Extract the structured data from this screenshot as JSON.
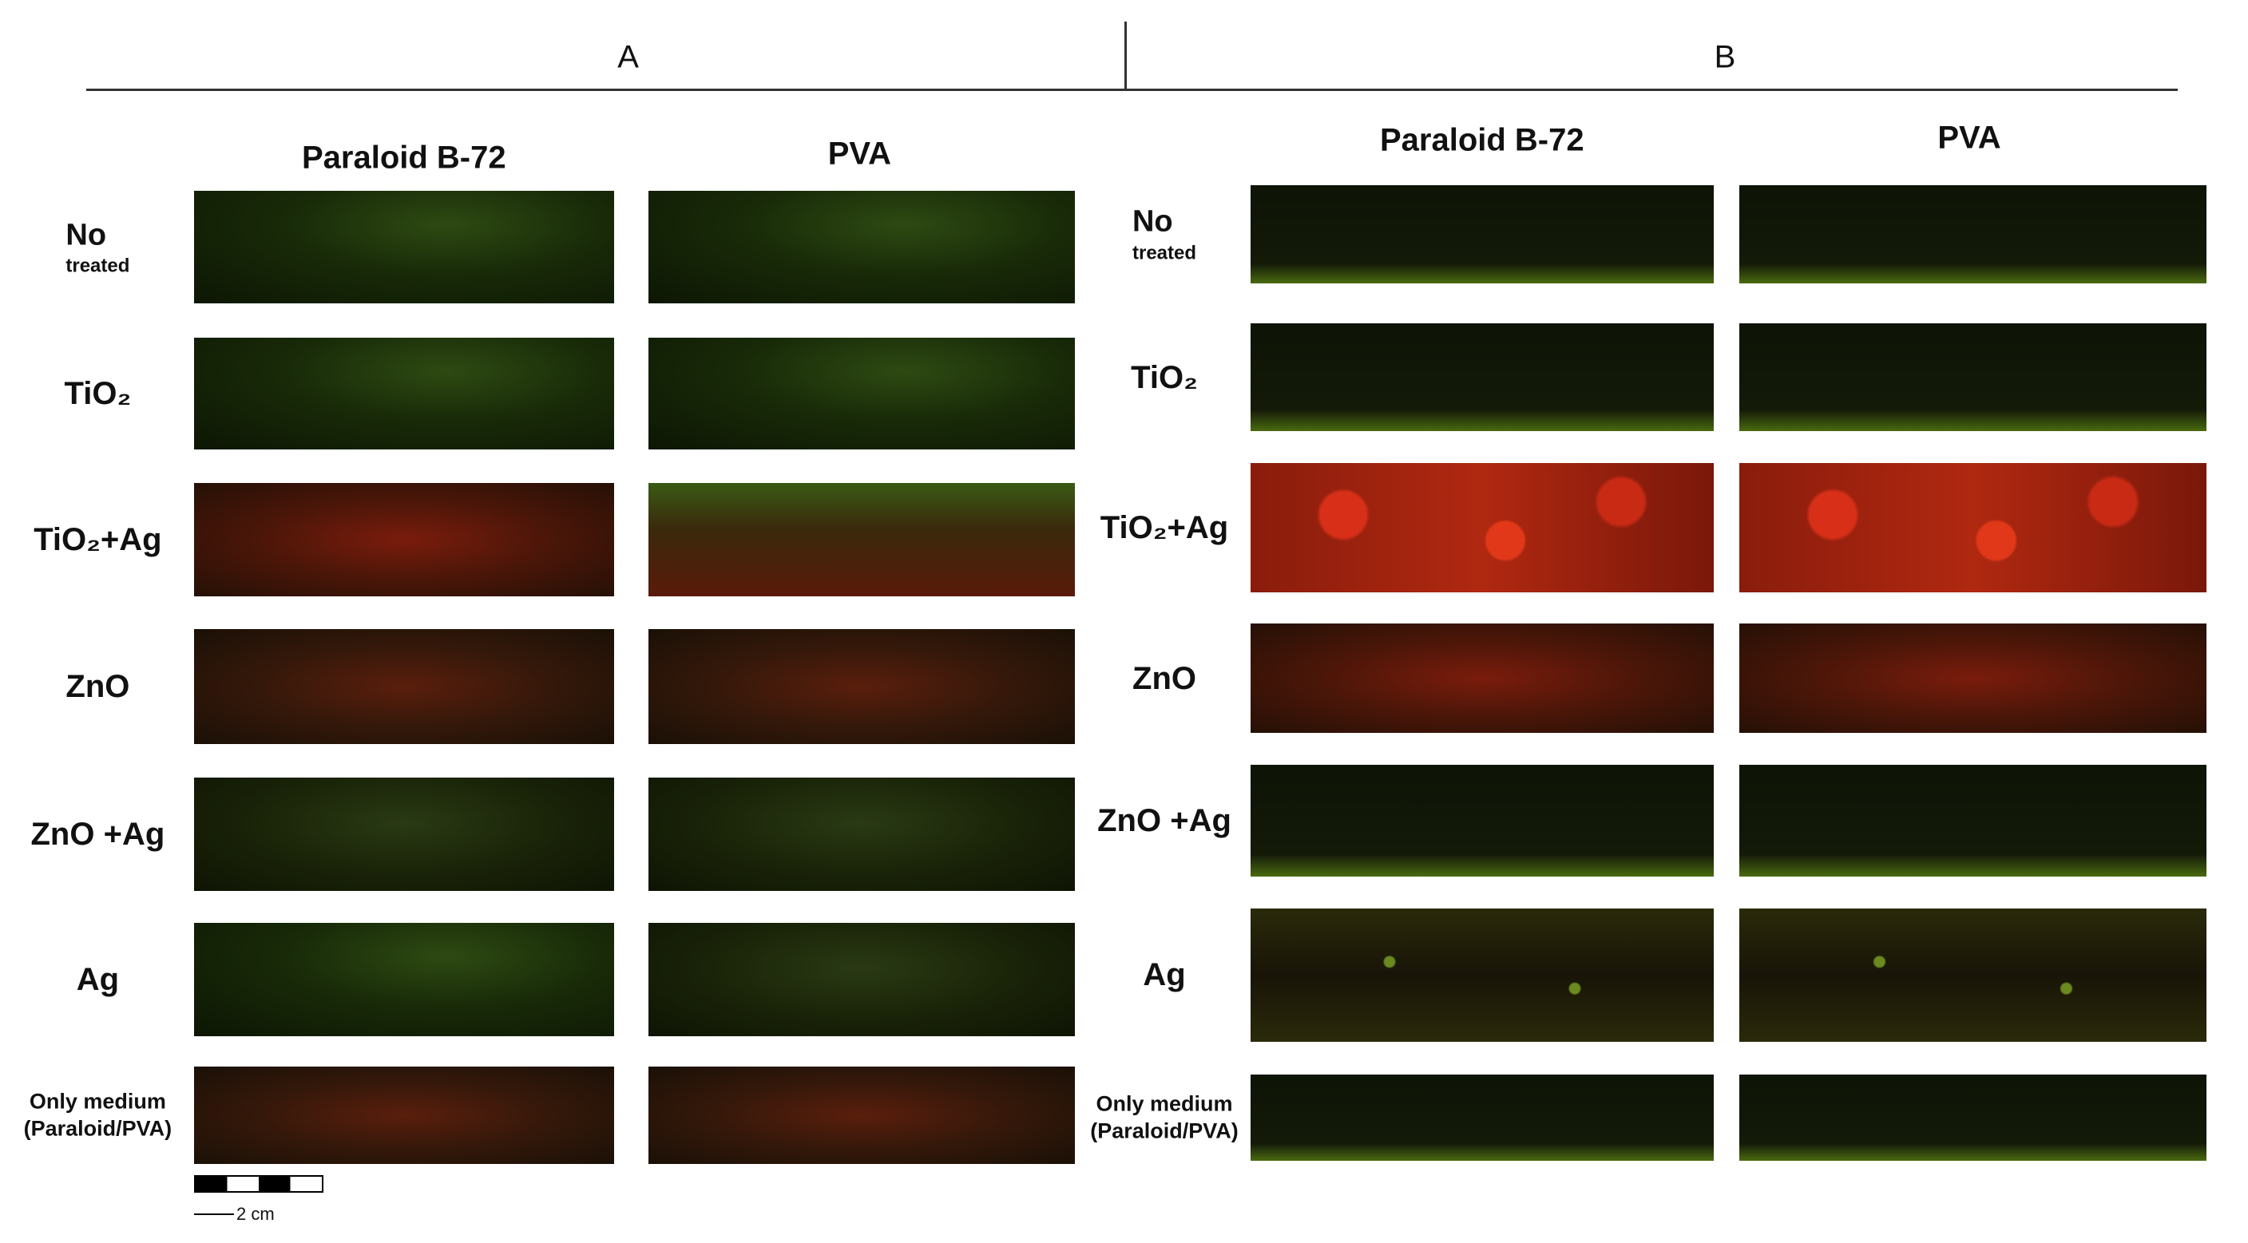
{
  "panels": [
    {
      "label": "A",
      "columns": [
        "Paraloid B-72",
        "PVA"
      ],
      "rows": [
        [
          "No",
          "treated"
        ],
        [
          "TiO₂"
        ],
        [
          "TiO₂+Ag"
        ],
        [
          "ZnO"
        ],
        [
          "ZnO +Ag"
        ],
        [
          "Ag"
        ],
        [
          "Only medium",
          "(Paraloid/PVA)"
        ]
      ]
    },
    {
      "label": "B",
      "columns": [
        "Paraloid B-72",
        "PVA"
      ],
      "rows": [
        [
          "No",
          "treated"
        ],
        [
          "TiO₂"
        ],
        [
          "TiO₂+Ag"
        ],
        [
          "ZnO"
        ],
        [
          "ZnO +Ag"
        ],
        [
          "Ag"
        ],
        [
          "Only medium",
          "(Paraloid/PVA)"
        ]
      ]
    }
  ],
  "scale_bar": {
    "label": "2 cm"
  }
}
